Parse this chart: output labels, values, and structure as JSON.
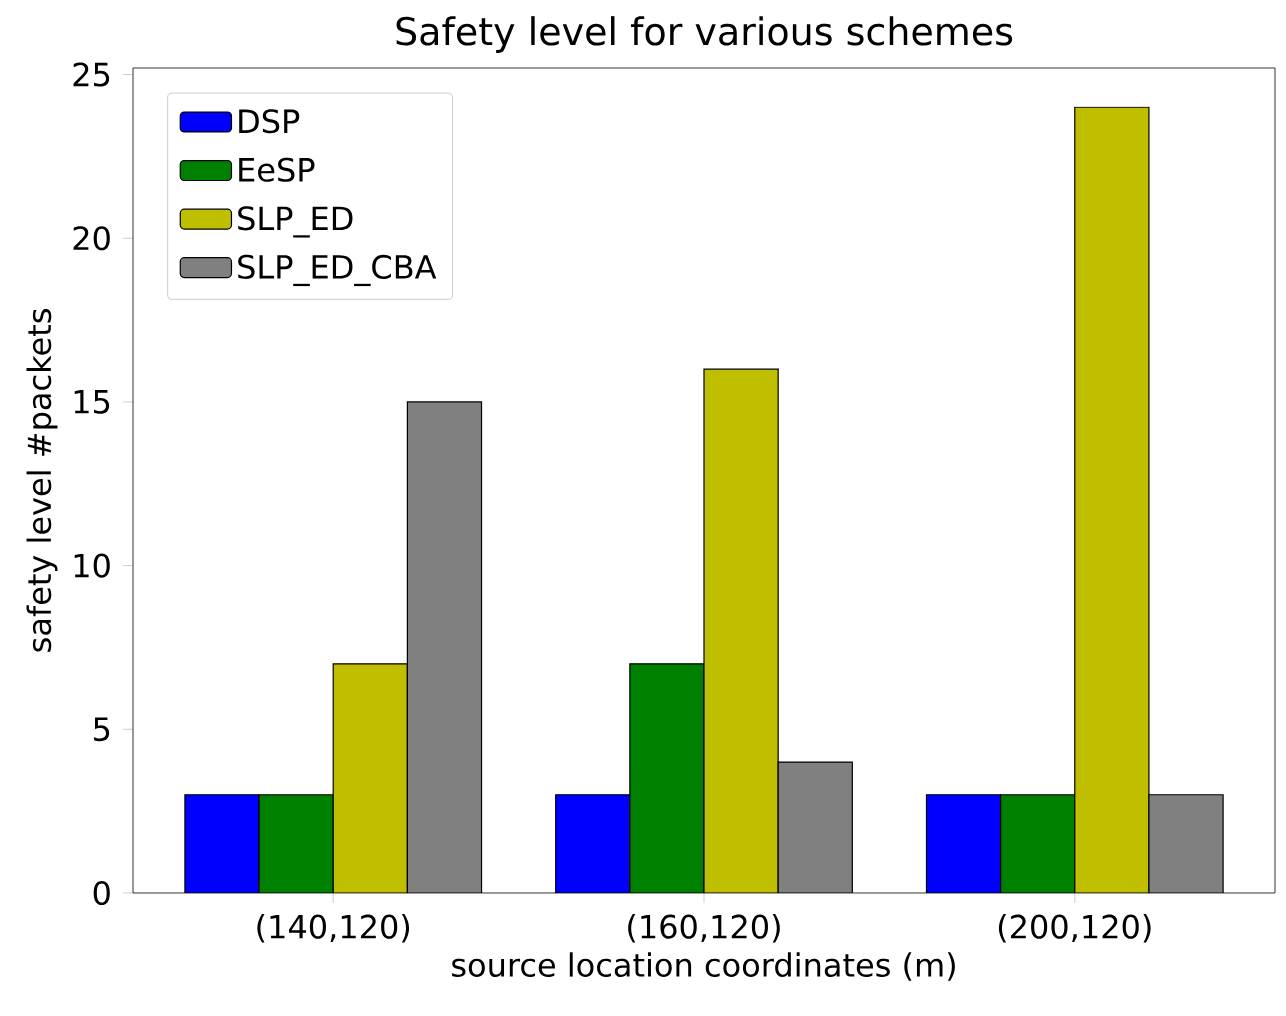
{
  "chart_data": {
    "type": "bar",
    "title": "Safety level for various schemes",
    "xlabel": "source location coordinates (m)",
    "ylabel": "safety level #packets",
    "categories": [
      "(140,120)",
      "(160,120)",
      "(200,120)"
    ],
    "series": [
      {
        "name": "DSP",
        "color": "#0000ff",
        "values": [
          3,
          3,
          3
        ]
      },
      {
        "name": "EeSP",
        "color": "#008000",
        "values": [
          3,
          7,
          3
        ]
      },
      {
        "name": "SLP_ED",
        "color": "#bfbf00",
        "values": [
          7,
          16,
          24
        ]
      },
      {
        "name": "SLP_ED_CBA",
        "color": "#808080",
        "values": [
          15,
          4,
          3
        ]
      }
    ],
    "ylim": [
      0,
      25.2
    ],
    "yticks": [
      0,
      5,
      10,
      15,
      20,
      25
    ],
    "legend": "top left",
    "grid": false
  }
}
